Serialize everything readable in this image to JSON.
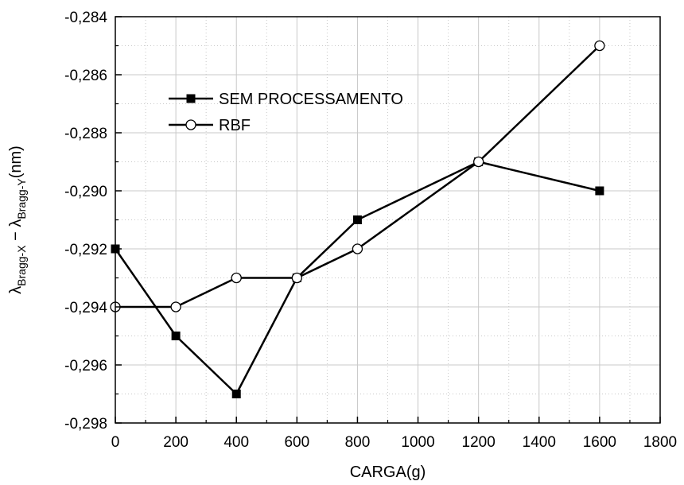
{
  "chart_data": {
    "type": "line",
    "xlabel": "CARGA(g)",
    "ylabel": {
      "lambda": "λ",
      "sub1": "Bragg-X",
      "minus": " − λ",
      "sub2": "Bragg-Y",
      "unit": "(nm)"
    },
    "xlim": [
      0,
      1800
    ],
    "ylim": [
      -0.298,
      -0.284
    ],
    "x_ticks": [
      0,
      200,
      400,
      600,
      800,
      1000,
      1200,
      1400,
      1600,
      1800
    ],
    "x_tick_labels": [
      "0",
      "200",
      "400",
      "600",
      "800",
      "1000",
      "1200",
      "1400",
      "1600",
      "1800"
    ],
    "y_ticks": [
      -0.298,
      -0.296,
      -0.294,
      -0.292,
      -0.29,
      -0.288,
      -0.286,
      -0.284
    ],
    "y_tick_labels": [
      "-0,298",
      "-0,296",
      "-0,294",
      "-0,292",
      "-0,290",
      "-0,288",
      "-0,286",
      "-0,284"
    ],
    "grid": true,
    "legend_position": "upper-left",
    "series": [
      {
        "name": "SEM PROCESSAMENTO",
        "marker": "filled-square",
        "color": "#000000",
        "x": [
          0,
          200,
          400,
          600,
          800,
          1200,
          1600
        ],
        "y": [
          -0.292,
          -0.295,
          -0.297,
          -0.293,
          -0.291,
          -0.289,
          -0.29
        ]
      },
      {
        "name": "RBF",
        "marker": "open-circle",
        "color": "#000000",
        "x": [
          0,
          200,
          400,
          600,
          800,
          1200,
          1600
        ],
        "y": [
          -0.294,
          -0.294,
          -0.293,
          -0.293,
          -0.292,
          -0.289,
          -0.285
        ]
      }
    ]
  }
}
